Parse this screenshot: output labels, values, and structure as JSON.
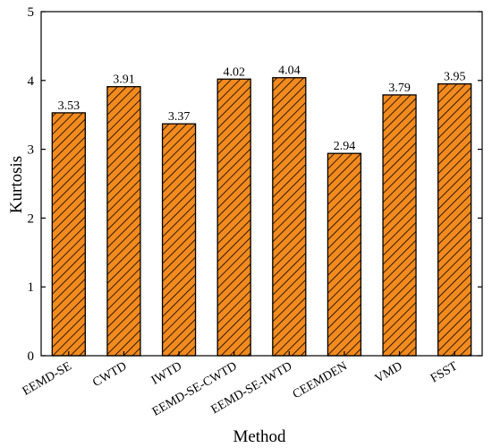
{
  "chart_data": {
    "type": "bar",
    "title": "",
    "xlabel": "Method",
    "ylabel": "Kurtosis",
    "categories": [
      "EEMD-SE",
      "CWTD",
      "IWTD",
      "EEMD-SE-CWTD",
      "EEMD-SE-IWTD",
      "CEEMDEN",
      "VMD",
      "FSST"
    ],
    "values": [
      3.53,
      3.91,
      3.37,
      4.02,
      4.04,
      2.94,
      3.79,
      3.95
    ],
    "data_labels": [
      "3.53",
      "3.91",
      "3.37",
      "4.02",
      "4.04",
      "2.94",
      "3.79",
      "3.95"
    ],
    "ylim": [
      0,
      5
    ],
    "yticks": [
      "0",
      "1",
      "2",
      "3",
      "4",
      "5"
    ],
    "grid": false,
    "legend": "none",
    "bar_fill": "#f28a1e",
    "bar_hatch": "diagonal-lines",
    "bar_edge": "#000000"
  }
}
